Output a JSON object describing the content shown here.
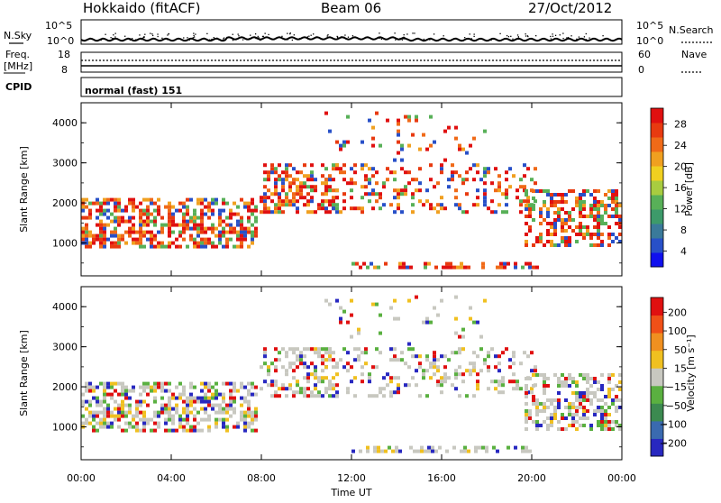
{
  "header": {
    "station": "Hokkaido (fitACF)",
    "beam": "Beam 06",
    "date": "27/Oct/2012"
  },
  "top_panels": {
    "nsky_label": "N.Sky",
    "nsearch_label": "N.Search",
    "left_scale_top": "10^5",
    "left_scale_bottom": "10^0",
    "right_scale_top": "10^5",
    "right_scale_bottom": "10^0",
    "freq_label": "Freq.",
    "freq_unit": "[MHz]",
    "freq_top": "18",
    "freq_bottom": "8",
    "nave_label": "Nave",
    "nave_top": "60",
    "nave_bottom": "0",
    "cpid_label": "CPID",
    "cpid_value": "normal (fast) 151"
  },
  "chart_data": [
    {
      "type": "heatmap",
      "title": "",
      "ylabel": "Slant Range [km]",
      "xlabel": "",
      "ylim": [
        180,
        4500
      ],
      "yticks": [
        "1000",
        "2000",
        "3000",
        "4000"
      ],
      "colorbar": {
        "label": "Power [dB]",
        "ticks": [
          "28",
          "24",
          "20",
          "16",
          "12",
          "8",
          "4"
        ],
        "colors": [
          "#1010ee",
          "#2850c8",
          "#3a7a9a",
          "#3d9a6a",
          "#58b058",
          "#a8cc40",
          "#f0d020",
          "#f0a020",
          "#f06a18",
          "#e83a10",
          "#e01010"
        ]
      }
    },
    {
      "type": "heatmap",
      "title": "",
      "ylabel": "Slant Range [km]",
      "xlabel": "Time UT",
      "ylim": [
        180,
        4500
      ],
      "yticks": [
        "1000",
        "2000",
        "3000",
        "4000"
      ],
      "xticks": [
        "00:00",
        "04:00",
        "08:00",
        "12:00",
        "16:00",
        "20:00",
        "00:00"
      ],
      "colorbar": {
        "label": "Velocity [m s⁻¹]",
        "ticks": [
          "200",
          "100",
          "50",
          "15",
          "−15",
          "−50",
          "−100",
          "−200"
        ],
        "colors": [
          "#2828c0",
          "#3a6ab0",
          "#3c8a50",
          "#5ab040",
          "#c8c8c0",
          "#f0c020",
          "#f09020",
          "#f05018",
          "#e01010"
        ]
      }
    }
  ]
}
